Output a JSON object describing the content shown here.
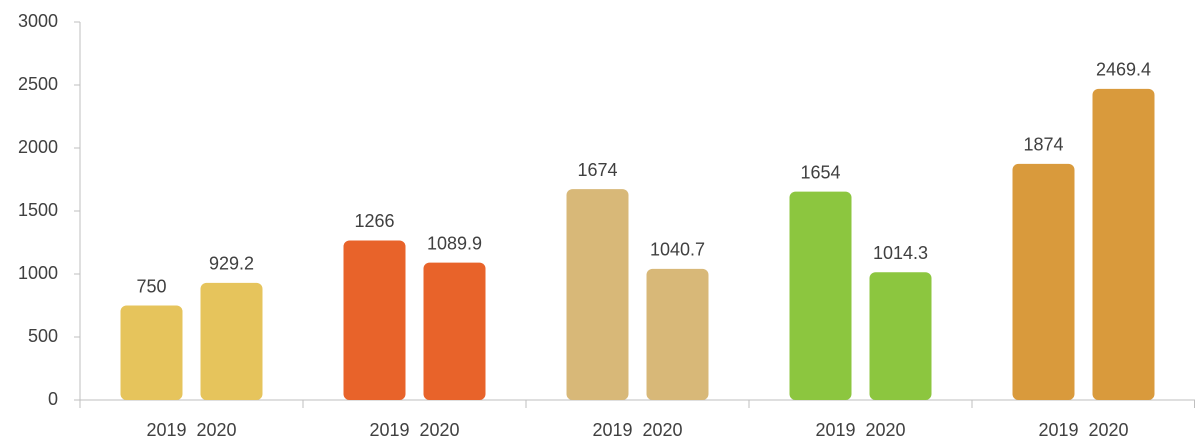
{
  "chart_data": {
    "type": "bar",
    "categories": [
      null,
      null,
      null,
      null,
      null
    ],
    "series": [
      {
        "name": "2019",
        "values": [
          750,
          1266,
          1674,
          1654,
          1874
        ]
      },
      {
        "name": "2020",
        "values": [
          929.2,
          1089.9,
          1040.7,
          1014.3,
          2469.4
        ]
      }
    ],
    "group_colors": [
      "#e6c45c",
      "#e8632a",
      "#d8b878",
      "#8cc63f",
      "#d99a3c"
    ],
    "ylim": [
      0,
      3000
    ],
    "yticks": [
      0,
      500,
      1000,
      1500,
      2000,
      2500,
      3000
    ],
    "grid": false
  }
}
